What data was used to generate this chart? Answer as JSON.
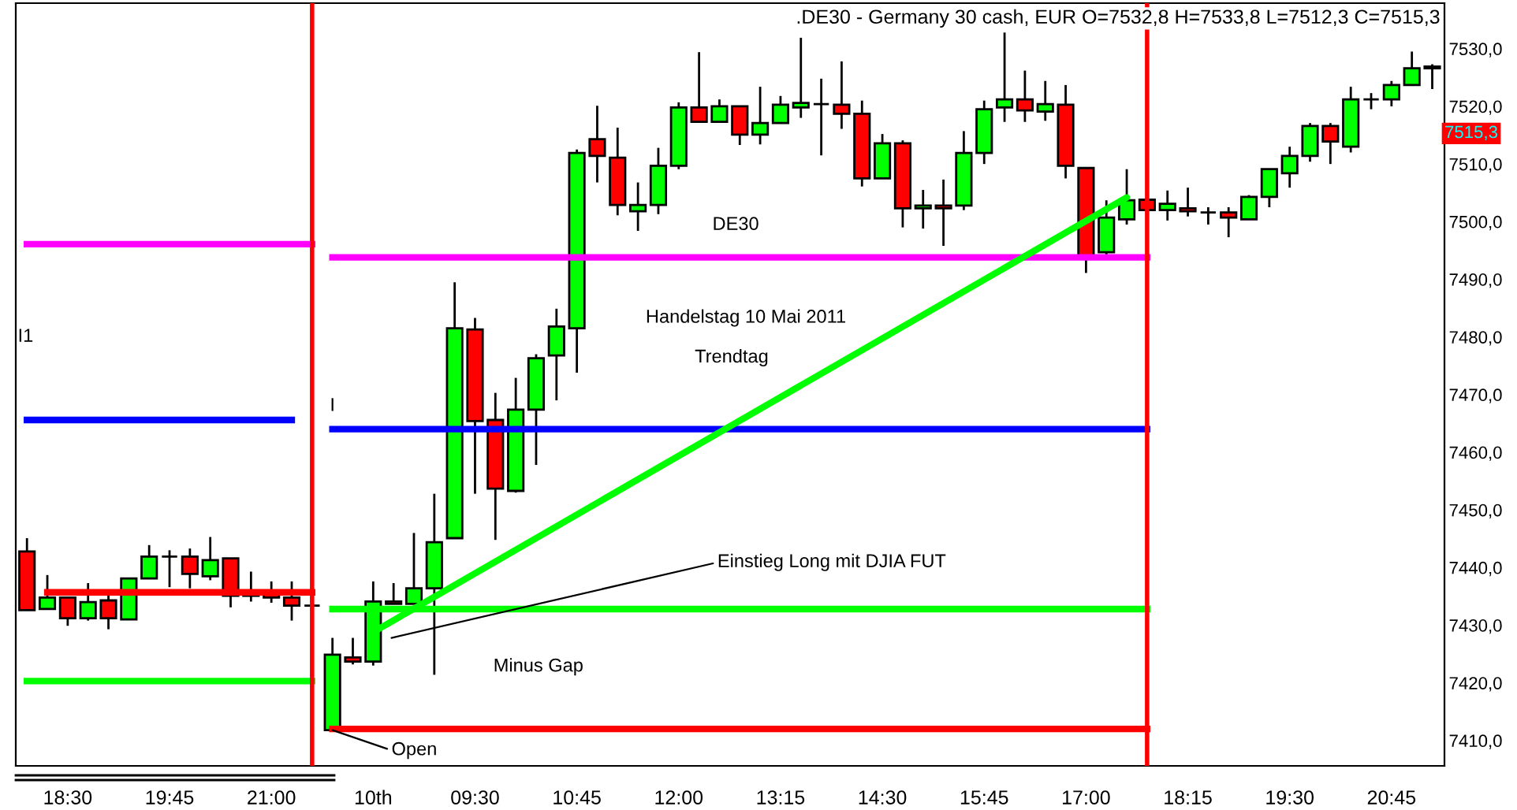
{
  "chart_data": {
    "type": "candlestick",
    "title": ".DE30 - Germany 30 cash, EUR O=7532,8 H=7533,8 L=7512,3 C=7515,3",
    "categories": [
      null,
      null,
      "18:30",
      null,
      null,
      null,
      null,
      "19:45",
      null,
      null,
      null,
      null,
      "21:00",
      null,
      null,
      null,
      null,
      "10th",
      null,
      null,
      null,
      null,
      "09:30",
      null,
      null,
      null,
      null,
      "10:45",
      null,
      null,
      null,
      null,
      "12:00",
      null,
      null,
      null,
      null,
      "13:15",
      null,
      null,
      null,
      null,
      "14:30",
      null,
      null,
      null,
      null,
      "15:45",
      null,
      null,
      null,
      null,
      "17:00",
      null,
      null,
      null,
      null,
      "18:15",
      null,
      null,
      null,
      null,
      "19:30",
      null,
      null,
      null,
      null,
      "20:45",
      null,
      null
    ],
    "ohlc": [
      [
        7442.8,
        7445.1,
        7432.6,
        7432.6
      ],
      [
        7432.8,
        7438.7,
        7432.8,
        7434.8
      ],
      [
        7434.8,
        7434.8,
        7429.9,
        7431.2
      ],
      [
        7431.2,
        7437.3,
        7430.8,
        7434.0
      ],
      [
        7434.3,
        7435.2,
        7429.3,
        7431.2
      ],
      [
        7431.0,
        7438.1,
        7431.0,
        7438.1
      ],
      [
        7438.1,
        7443.9,
        7438.1,
        7441.9
      ],
      [
        7441.9,
        7443.0,
        7436.6,
        7441.9
      ],
      [
        7441.9,
        7443.3,
        7436.4,
        7438.9
      ],
      [
        7438.5,
        7445.3,
        7437.8,
        7441.3
      ],
      [
        7441.6,
        7441.6,
        7433.1,
        7435.1
      ],
      [
        7435.3,
        7439.3,
        7434.1,
        7435.1
      ],
      [
        7435.5,
        7437.6,
        7433.9,
        7434.8
      ],
      [
        7434.8,
        7437.6,
        7430.8,
        7433.4
      ],
      [
        7433.4,
        7433.4,
        7433.4,
        7433.4
      ],
      [
        7411.8,
        7427.8,
        7411.8,
        7424.9
      ],
      [
        7424.4,
        7427.8,
        7423.2,
        7423.7
      ],
      [
        7423.7,
        7437.6,
        7423.0,
        7434.1
      ],
      [
        7434.1,
        7437.3,
        7433.7,
        7433.7
      ],
      [
        7433.7,
        7446.0,
        7433.7,
        7436.4
      ],
      [
        7436.4,
        7452.8,
        7421.4,
        7444.4
      ],
      [
        7445.1,
        7489.5,
        7445.1,
        7481.5
      ],
      [
        7481.3,
        7483.3,
        7452.8,
        7465.4
      ],
      [
        7465.6,
        7470.3,
        7444.8,
        7453.7
      ],
      [
        7453.3,
        7472.9,
        7453.0,
        7467.4
      ],
      [
        7467.4,
        7477.0,
        7457.8,
        7476.3
      ],
      [
        7476.8,
        7484.9,
        7469.0,
        7481.8
      ],
      [
        7481.5,
        7512.5,
        7473.8,
        7511.9
      ],
      [
        7514.3,
        7520.1,
        7506.8,
        7511.4
      ],
      [
        7511.1,
        7516.3,
        7501.1,
        7502.9
      ],
      [
        7501.8,
        7506.8,
        7498.4,
        7502.9
      ],
      [
        7502.9,
        7512.8,
        7501.3,
        7509.7
      ],
      [
        7509.7,
        7520.7,
        7509.1,
        7519.8
      ],
      [
        7519.8,
        7529.4,
        7517.3,
        7517.3
      ],
      [
        7517.3,
        7521.2,
        7517.3,
        7520.0
      ],
      [
        7520.0,
        7520.0,
        7513.3,
        7515.1
      ],
      [
        7515.1,
        7523.4,
        7513.4,
        7517.1
      ],
      [
        7517.1,
        7521.8,
        7517.1,
        7520.3
      ],
      [
        7519.8,
        7531.9,
        7518.0,
        7520.6
      ],
      [
        7520.4,
        7524.8,
        7511.5,
        7520.4
      ],
      [
        7520.3,
        7527.8,
        7516.1,
        7518.7
      ],
      [
        7518.7,
        7521.0,
        7506.1,
        7507.5
      ],
      [
        7507.5,
        7515.2,
        7507.5,
        7513.6
      ],
      [
        7513.6,
        7514.1,
        7499.0,
        7502.3
      ],
      [
        7502.3,
        7505.5,
        7498.8,
        7502.8
      ],
      [
        7502.8,
        7507.3,
        7495.8,
        7502.3
      ],
      [
        7502.8,
        7515.7,
        7502.0,
        7511.9
      ],
      [
        7511.9,
        7521.0,
        7510.0,
        7519.5
      ],
      [
        7519.8,
        7532.8,
        7517.3,
        7521.2
      ],
      [
        7521.2,
        7526.2,
        7517.3,
        7519.3
      ],
      [
        7519.1,
        7524.4,
        7517.5,
        7520.4
      ],
      [
        7520.3,
        7523.7,
        7507.5,
        7509.7
      ],
      [
        7509.3,
        7509.3,
        7491.1,
        7494.1
      ],
      [
        7494.7,
        7503.7,
        7493.8,
        7500.7
      ],
      [
        7500.4,
        7509.1,
        7499.5,
        7503.7
      ],
      [
        7503.8,
        7503.8,
        7502.0,
        7502.0
      ],
      [
        7502.0,
        7505.4,
        7500.2,
        7503.1
      ],
      [
        7502.3,
        7505.9,
        7500.9,
        7501.8
      ],
      [
        7501.6,
        7502.5,
        7499.5,
        7501.6
      ],
      [
        7501.6,
        7502.5,
        7497.3,
        7500.7
      ],
      [
        7500.4,
        7504.6,
        7500.4,
        7504.3
      ],
      [
        7504.3,
        7509.1,
        7502.5,
        7509.1
      ],
      [
        7508.4,
        7513.0,
        7505.9,
        7511.4
      ],
      [
        7511.4,
        7517.1,
        7510.4,
        7516.6
      ],
      [
        7516.6,
        7517.1,
        7510.0,
        7513.9
      ],
      [
        7513.0,
        7523.4,
        7512.0,
        7521.2
      ],
      [
        7521.2,
        7522.3,
        7519.5,
        7521.2
      ],
      [
        7521.2,
        7524.4,
        7520.0,
        7523.7
      ],
      [
        7523.7,
        7529.5,
        7523.7,
        7526.6
      ],
      [
        7526.6,
        7527.3,
        7523.0,
        7526.9
      ]
    ],
    "colors": [
      "#ff0000",
      "#00ff00",
      "#ff0000",
      "#00ff00",
      "#ff0000",
      "#00ff00",
      "#00ff00",
      "#000000",
      "#ff0000",
      "#00ff00",
      "#ff0000",
      "#ff0000",
      "#ff0000",
      "#ff0000",
      "#000000",
      "#00ff00",
      "#ff0000",
      "#00ff00",
      "#ff0000",
      "#00ff00",
      "#00ff00",
      "#00ff00",
      "#ff0000",
      "#ff0000",
      "#00ff00",
      "#00ff00",
      "#00ff00",
      "#00ff00",
      "#ff0000",
      "#ff0000",
      "#00ff00",
      "#00ff00",
      "#00ff00",
      "#ff0000",
      "#00ff00",
      "#ff0000",
      "#00ff00",
      "#00ff00",
      "#00ff00",
      "#000000",
      "#ff0000",
      "#ff0000",
      "#00ff00",
      "#ff0000",
      "#00ff00",
      "#ff0000",
      "#00ff00",
      "#00ff00",
      "#00ff00",
      "#ff0000",
      "#00ff00",
      "#ff0000",
      "#ff0000",
      "#00ff00",
      "#00ff00",
      "#ff0000",
      "#00ff00",
      "#ff0000",
      "#000000",
      "#ff0000",
      "#00ff00",
      "#00ff00",
      "#00ff00",
      "#00ff00",
      "#ff0000",
      "#00ff00",
      "#000000",
      "#00ff00",
      "#00ff00",
      "#00ff00"
    ],
    "series": [
      {
        "type": "step",
        "color": "#ff00ff",
        "values": [
          7496.1,
          7496.1,
          7496.1,
          7496.1,
          7496.1,
          7496.1,
          7496.1,
          7496.1,
          7496.1,
          7496.1,
          7496.1,
          7496.1,
          7496.1,
          7496.1,
          7496.1,
          7493.8,
          7493.8,
          7493.8,
          7493.8,
          7493.8,
          7493.8,
          7493.8,
          7493.8,
          7493.8,
          7493.8,
          7493.8,
          7493.8,
          7493.8,
          7493.8,
          7493.8,
          7493.8,
          7493.8,
          7493.8,
          7493.8,
          7493.8,
          7493.8,
          7493.8,
          7493.8,
          7493.8,
          7493.8,
          7493.8,
          7493.8,
          7493.8,
          7493.8,
          7493.8,
          7493.8,
          7493.8,
          7493.8,
          7493.8,
          7493.8,
          7493.8,
          7493.8,
          7493.8,
          7493.8,
          7493.8,
          7493.8,
          null,
          null,
          null,
          null,
          null,
          null,
          null,
          null,
          null,
          null,
          null,
          null,
          null,
          null
        ]
      },
      {
        "type": "step",
        "color": "#0000ff",
        "values": [
          7465.6,
          7465.6,
          7465.6,
          7465.6,
          7465.6,
          7465.6,
          7465.6,
          7465.6,
          7465.6,
          7465.6,
          7465.6,
          7465.6,
          7465.6,
          7465.6,
          null,
          7464.0,
          7464.0,
          7464.0,
          7464.0,
          7464.0,
          7464.0,
          7464.0,
          7464.0,
          7464.0,
          7464.0,
          7464.0,
          7464.0,
          7464.0,
          7464.0,
          7464.0,
          7464.0,
          7464.0,
          7464.0,
          7464.0,
          7464.0,
          7464.0,
          7464.0,
          7464.0,
          7464.0,
          7464.0,
          7464.0,
          7464.0,
          7464.0,
          7464.0,
          7464.0,
          7464.0,
          7464.0,
          7464.0,
          7464.0,
          7464.0,
          7464.0,
          7464.0,
          7464.0,
          7464.0,
          7464.0,
          7464.0,
          null,
          null,
          null,
          null,
          null,
          null,
          null,
          null,
          null,
          null,
          null,
          null,
          null,
          null
        ]
      },
      {
        "type": "step",
        "color": "#ff0000",
        "values": [
          null,
          7435.7,
          7435.7,
          7435.7,
          7435.7,
          7435.7,
          7435.7,
          7435.7,
          7435.7,
          7435.7,
          7435.7,
          7435.7,
          7435.7,
          7435.7,
          7435.7,
          7412.0,
          7412.0,
          7412.0,
          7412.0,
          7412.0,
          7412.0,
          7412.0,
          7412.0,
          7412.0,
          7412.0,
          7412.0,
          7412.0,
          7412.0,
          7412.0,
          7412.0,
          7412.0,
          7412.0,
          7412.0,
          7412.0,
          7412.0,
          7412.0,
          7412.0,
          7412.0,
          7412.0,
          7412.0,
          7412.0,
          7412.0,
          7412.0,
          7412.0,
          7412.0,
          7412.0,
          7412.0,
          7412.0,
          7412.0,
          7412.0,
          7412.0,
          7412.0,
          7412.0,
          7412.0,
          7412.0,
          7412.0,
          null,
          null,
          null,
          null,
          null,
          null,
          null,
          null,
          null,
          null,
          null,
          null,
          null,
          null
        ]
      },
      {
        "type": "step",
        "color": "#00ff00",
        "values": [
          7420.3,
          7420.3,
          7420.3,
          7420.3,
          7420.3,
          7420.3,
          7420.3,
          7420.3,
          7420.3,
          7420.3,
          7420.3,
          7420.3,
          7420.3,
          7420.3,
          7420.3,
          7432.8,
          7432.8,
          7432.8,
          7432.8,
          7432.8,
          7432.8,
          7432.8,
          7432.8,
          7432.8,
          7432.8,
          7432.8,
          7432.8,
          7432.8,
          7432.8,
          7432.8,
          7432.8,
          7432.8,
          7432.8,
          7432.8,
          7432.8,
          7432.8,
          7432.8,
          7432.8,
          7432.8,
          7432.8,
          7432.8,
          7432.8,
          7432.8,
          7432.8,
          7432.8,
          7432.8,
          7432.8,
          7432.8,
          7432.8,
          7432.8,
          7432.8,
          7432.8,
          7432.8,
          7432.8,
          7432.8,
          7432.8,
          null,
          null,
          null,
          null,
          null,
          null,
          null,
          null,
          null,
          null,
          null,
          null,
          null,
          null
        ]
      },
      {
        "type": "line",
        "color": "#00ff00",
        "values": [
          null,
          null,
          null,
          null,
          null,
          null,
          null,
          null,
          null,
          null,
          null,
          null,
          null,
          null,
          null,
          null,
          null,
          7428.8,
          null,
          null,
          null,
          null,
          null,
          null,
          null,
          null,
          null,
          null,
          null,
          null,
          null,
          null,
          null,
          null,
          null,
          null,
          null,
          null,
          null,
          null,
          null,
          null,
          null,
          null,
          null,
          null,
          null,
          null,
          null,
          null,
          null,
          null,
          null,
          null,
          7504.2,
          null,
          null,
          null,
          null,
          null,
          null,
          null,
          null,
          null,
          null,
          null,
          null,
          null,
          null,
          null
        ]
      }
    ],
    "annotations": [
      "DE30",
      "Handelstag 10 Mai 2011",
      "Trendtag",
      "Einstieg Long mit DJIA FUT",
      "Minus Gap",
      {
        "text": "Open",
        "y": 7411.8
      },
      "I1",
      "I",
      "7515,3"
    ],
    "ylim": [
      7405.6,
      7537.9
    ],
    "yticks": [
      {
        "value": 7410,
        "label": "7410,0"
      },
      {
        "value": 7420,
        "label": "7420,0"
      },
      {
        "value": 7430,
        "label": "7430,0"
      },
      {
        "value": 7440,
        "label": "7440,0"
      },
      {
        "value": 7450,
        "label": "7450,0"
      },
      {
        "value": 7460,
        "label": "7460,0"
      },
      {
        "value": 7470,
        "label": "7470,0"
      },
      {
        "value": 7480,
        "label": "7480,0"
      },
      {
        "value": 7490,
        "label": "7490,0"
      },
      {
        "value": 7500,
        "label": "7500,0"
      },
      {
        "value": 7510,
        "label": "7510,0"
      },
      {
        "value": 7520,
        "label": "7520,0"
      },
      {
        "value": 7530,
        "label": "7530,0"
      }
    ]
  }
}
